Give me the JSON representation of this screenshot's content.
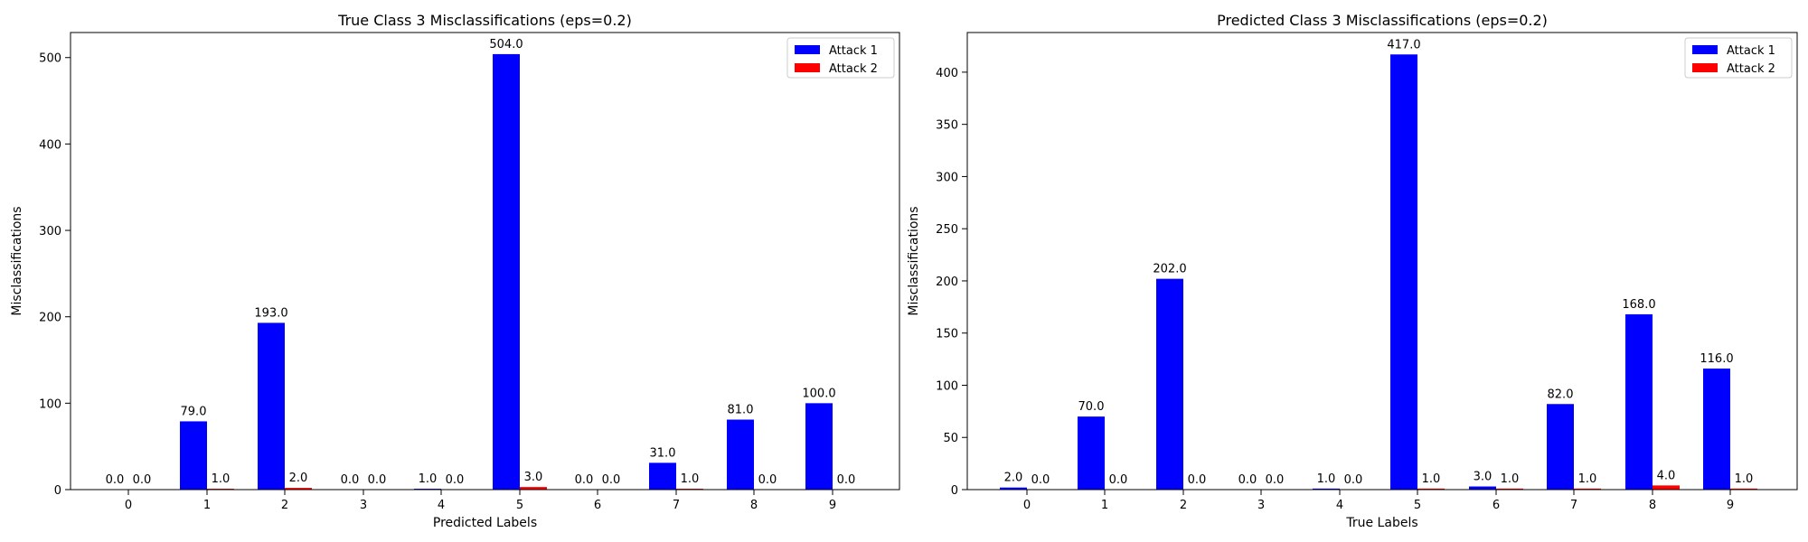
{
  "chart_data": [
    {
      "type": "bar",
      "title": "True Class 3 Misclassifications (eps=0.2)",
      "xlabel": "Predicted Labels",
      "ylabel": "Misclassifications",
      "categories": [
        "0",
        "1",
        "2",
        "3",
        "4",
        "5",
        "6",
        "7",
        "8",
        "9"
      ],
      "ylim": [
        0,
        529
      ],
      "yticks": [
        0,
        100,
        200,
        300,
        400,
        500
      ],
      "grid": false,
      "legend_position": "top-right",
      "series": [
        {
          "name": "Attack 1",
          "color": "#0000ff",
          "values": [
            0,
            79,
            193,
            0,
            1,
            504,
            0,
            31,
            81,
            100
          ],
          "labels": [
            "0.0",
            "79.0",
            "193.0",
            "0.0",
            "1.0",
            "504.0",
            "0.0",
            "31.0",
            "81.0",
            "100.0"
          ]
        },
        {
          "name": "Attack 2",
          "color": "#ff0000",
          "values": [
            0,
            1,
            2,
            0,
            0,
            3,
            0,
            1,
            0,
            0
          ],
          "labels": [
            "0.0",
            "1.0",
            "2.0",
            "0.0",
            "0.0",
            "3.0",
            "0.0",
            "1.0",
            "0.0",
            "0.0"
          ]
        }
      ]
    },
    {
      "type": "bar",
      "title": "Predicted Class 3 Misclassifications (eps=0.2)",
      "xlabel": "True Labels",
      "ylabel": "Misclassifications",
      "categories": [
        "0",
        "1",
        "2",
        "3",
        "4",
        "5",
        "6",
        "7",
        "8",
        "9"
      ],
      "ylim": [
        0,
        438
      ],
      "yticks": [
        0,
        50,
        100,
        150,
        200,
        250,
        300,
        350,
        400
      ],
      "grid": false,
      "legend_position": "top-right",
      "series": [
        {
          "name": "Attack 1",
          "color": "#0000ff",
          "values": [
            2,
            70,
            202,
            0,
            1,
            417,
            3,
            82,
            168,
            116
          ],
          "labels": [
            "2.0",
            "70.0",
            "202.0",
            "0.0",
            "1.0",
            "417.0",
            "3.0",
            "82.0",
            "168.0",
            "116.0"
          ]
        },
        {
          "name": "Attack 2",
          "color": "#ff0000",
          "values": [
            0,
            0,
            0,
            0,
            0,
            1,
            1,
            1,
            4,
            1
          ],
          "labels": [
            "0.0",
            "0.0",
            "0.0",
            "0.0",
            "0.0",
            "1.0",
            "1.0",
            "1.0",
            "4.0",
            "1.0"
          ]
        }
      ]
    }
  ]
}
